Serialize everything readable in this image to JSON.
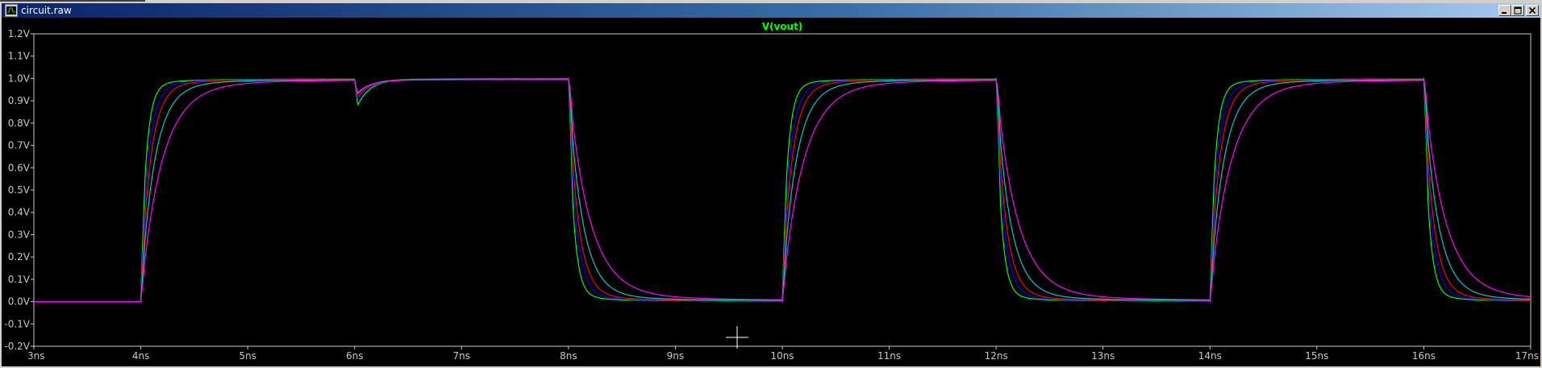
{
  "window": {
    "title": "circuit.raw",
    "icon": "waveform-app-icon",
    "buttons": [
      "minimize-icon",
      "maximize-icon",
      "close-icon"
    ]
  },
  "plot": {
    "trace_title": "V(vout)",
    "background_color": "#000000",
    "grid": false,
    "cursor": "crosshair",
    "colors": {
      "axis": "#c8c8c8",
      "tick_label": "#c8c8c8",
      "title": "#00ff00"
    }
  },
  "chart_data": {
    "type": "line",
    "title": "V(vout)",
    "xlabel": "",
    "ylabel": "",
    "x_unit": "ns",
    "y_unit": "V",
    "xlim": [
      3,
      17
    ],
    "ylim": [
      -0.2,
      1.2
    ],
    "x_ticks": [
      "3ns",
      "4ns",
      "5ns",
      "6ns",
      "7ns",
      "8ns",
      "9ns",
      "10ns",
      "11ns",
      "12ns",
      "13ns",
      "14ns",
      "15ns",
      "16ns",
      "17ns"
    ],
    "y_ticks": [
      "1.2V",
      "1.1V",
      "1.0V",
      "0.9V",
      "0.8V",
      "0.7V",
      "0.6V",
      "0.5V",
      "0.4V",
      "0.3V",
      "0.2V",
      "0.1V",
      "0.0V",
      "-0.1V",
      "-0.2V"
    ],
    "series": [
      {
        "color": "#00ff00",
        "tau_ns": 0.05,
        "overshoot_v": 0.1,
        "glitch_v": 0.15,
        "points": [
          [
            3,
            0
          ],
          [
            4,
            0
          ],
          [
            4.25,
            0.99
          ],
          [
            6,
            1.0
          ],
          [
            6.05,
            0.85
          ],
          [
            6.5,
            1.0
          ],
          [
            8,
            1.0
          ],
          [
            8.02,
            1.1
          ],
          [
            8.25,
            0.01
          ],
          [
            10,
            0
          ],
          [
            10.02,
            -0.04
          ],
          [
            10.25,
            0.99
          ],
          [
            12,
            1.0
          ],
          [
            12.25,
            0.01
          ],
          [
            14,
            0
          ],
          [
            14.02,
            -0.03
          ],
          [
            14.25,
            0.99
          ],
          [
            16,
            1.0
          ],
          [
            16.02,
            1.1
          ],
          [
            16.25,
            0.01
          ],
          [
            17,
            0
          ]
        ]
      },
      {
        "color": "#0000ff",
        "tau_ns": 0.07,
        "overshoot_v": 0.08,
        "glitch_v": 0.12,
        "points": [
          [
            3,
            0
          ],
          [
            4,
            0
          ],
          [
            4.35,
            0.99
          ],
          [
            6,
            1.0
          ],
          [
            6.05,
            0.88
          ],
          [
            6.5,
            1.0
          ],
          [
            8,
            1.0
          ],
          [
            8.02,
            1.08
          ],
          [
            8.35,
            0.01
          ],
          [
            10,
            0
          ],
          [
            10.35,
            0.99
          ],
          [
            12,
            1.0
          ],
          [
            12.35,
            0.01
          ],
          [
            14,
            0
          ],
          [
            14.35,
            0.99
          ],
          [
            16,
            1.0
          ],
          [
            16.35,
            0.01
          ],
          [
            17,
            0
          ]
        ]
      },
      {
        "color": "#ff0000",
        "tau_ns": 0.09,
        "overshoot_v": 0.06,
        "glitch_v": 0.1,
        "points": [
          [
            3,
            0
          ],
          [
            4,
            0
          ],
          [
            4.45,
            0.99
          ],
          [
            6,
            1.0
          ],
          [
            6.05,
            0.9
          ],
          [
            6.5,
            1.0
          ],
          [
            8,
            1.0
          ],
          [
            8.45,
            0.01
          ],
          [
            10,
            0
          ],
          [
            10.45,
            0.99
          ],
          [
            12,
            1.0
          ],
          [
            12.45,
            0.01
          ],
          [
            14,
            0
          ],
          [
            14.45,
            0.99
          ],
          [
            16,
            1.0
          ],
          [
            16.45,
            0.01
          ],
          [
            17,
            0
          ]
        ]
      },
      {
        "color": "#00c8c8",
        "tau_ns": 0.13,
        "overshoot_v": 0.04,
        "glitch_v": 0.08,
        "points": [
          [
            3,
            0
          ],
          [
            4,
            0
          ],
          [
            4.65,
            0.99
          ],
          [
            6,
            1.0
          ],
          [
            6.05,
            0.92
          ],
          [
            6.5,
            1.0
          ],
          [
            8,
            1.0
          ],
          [
            8.65,
            0.01
          ],
          [
            10,
            0
          ],
          [
            10.65,
            0.99
          ],
          [
            12,
            1.0
          ],
          [
            12.65,
            0.01
          ],
          [
            14,
            0
          ],
          [
            14.65,
            0.99
          ],
          [
            16,
            1.0
          ],
          [
            16.65,
            0.01
          ],
          [
            17,
            0
          ]
        ]
      },
      {
        "color": "#ff00ff",
        "tau_ns": 0.2,
        "overshoot_v": 0.03,
        "glitch_v": 0.07,
        "points": [
          [
            3,
            0
          ],
          [
            4,
            0
          ],
          [
            5,
            0.99
          ],
          [
            6,
            1.0
          ],
          [
            6.05,
            0.93
          ],
          [
            6.5,
            1.0
          ],
          [
            8,
            1.0
          ],
          [
            9,
            0.01
          ],
          [
            10,
            0
          ],
          [
            11,
            0.99
          ],
          [
            12,
            1.0
          ],
          [
            13,
            0.01
          ],
          [
            14,
            0
          ],
          [
            15,
            0.99
          ],
          [
            16,
            1.0
          ],
          [
            17,
            0
          ]
        ]
      }
    ],
    "edges": [
      {
        "t": 4,
        "dir": "rise"
      },
      {
        "t": 8,
        "dir": "fall"
      },
      {
        "t": 10,
        "dir": "rise"
      },
      {
        "t": 12,
        "dir": "fall"
      },
      {
        "t": 14,
        "dir": "rise"
      },
      {
        "t": 16,
        "dir": "fall"
      }
    ],
    "glitch_t": 6
  }
}
